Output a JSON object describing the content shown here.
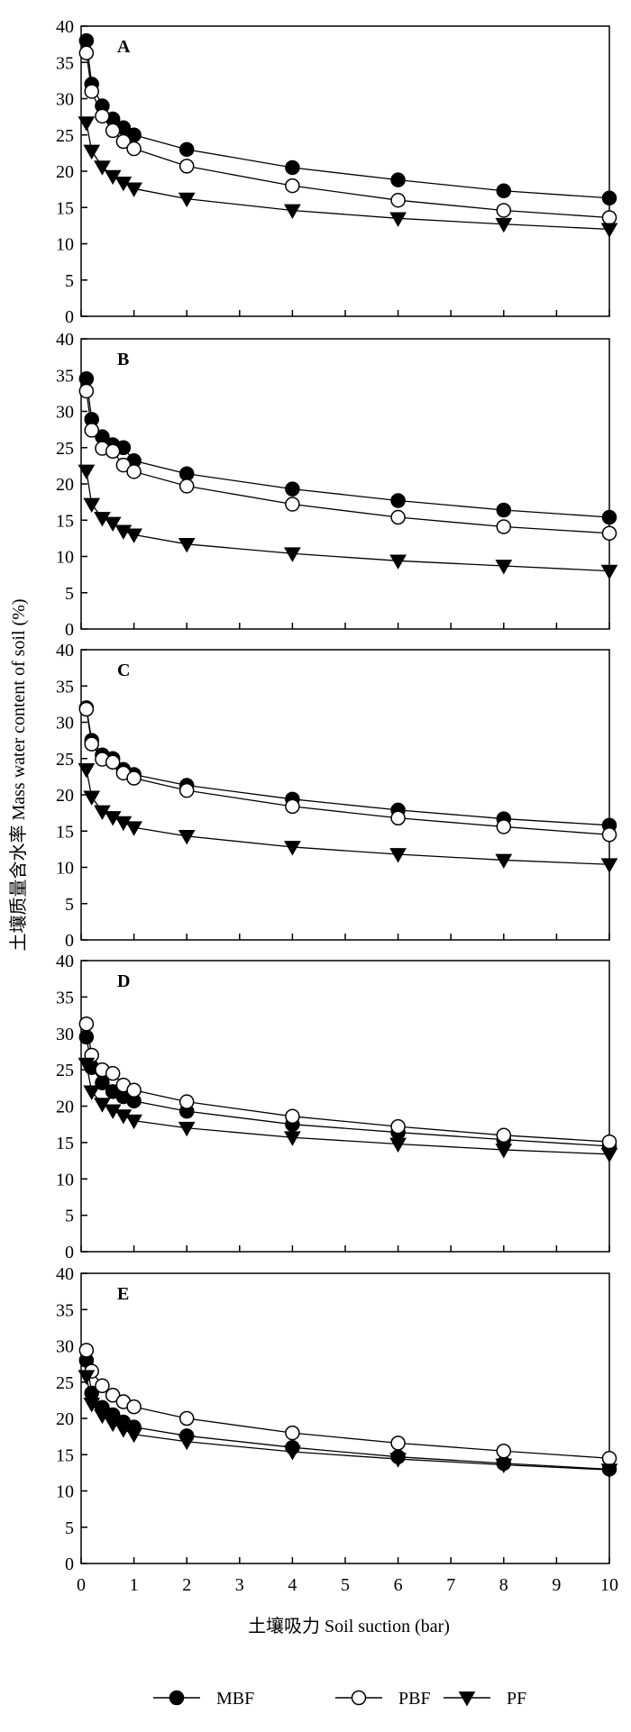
{
  "ylabel": "土壤质量含水率 Mass water content of soil (%)",
  "xlabel": "土壤吸力 Soil suction (bar)",
  "legend": [
    {
      "name": "MBF",
      "marker": "filled-circle"
    },
    {
      "name": "PBF",
      "marker": "open-circle"
    },
    {
      "name": "PF",
      "marker": "filled-triangle-down"
    }
  ],
  "colors": {
    "line": "#000000",
    "open_fill": "#ffffff",
    "filled": "#000000"
  },
  "chart_data": [
    {
      "type": "line",
      "panel": "A",
      "x": [
        0.1,
        0.2,
        0.4,
        0.6,
        0.8,
        1,
        2,
        4,
        6,
        8,
        10
      ],
      "xlim": [
        0,
        10
      ],
      "ylim": [
        0,
        40
      ],
      "xticks": [
        0,
        1,
        2,
        3,
        4,
        5,
        6,
        7,
        8,
        9,
        10
      ],
      "yticks": [
        0,
        5,
        10,
        15,
        20,
        25,
        30,
        35,
        40
      ],
      "series": [
        {
          "name": "MBF",
          "values": [
            38.0,
            32.0,
            29.0,
            27.2,
            26.0,
            25.0,
            23.0,
            20.5,
            18.8,
            17.3,
            16.3
          ]
        },
        {
          "name": "PBF",
          "values": [
            36.3,
            31.0,
            27.6,
            25.6,
            24.1,
            23.1,
            20.7,
            18.0,
            16.0,
            14.6,
            13.6
          ]
        },
        {
          "name": "PF",
          "values": [
            26.7,
            22.8,
            20.6,
            19.3,
            18.4,
            17.6,
            16.2,
            14.6,
            13.5,
            12.7,
            12.0
          ]
        }
      ]
    },
    {
      "type": "line",
      "panel": "B",
      "x": [
        0.1,
        0.2,
        0.4,
        0.6,
        0.8,
        1,
        2,
        4,
        6,
        8,
        10
      ],
      "xlim": [
        0,
        10
      ],
      "ylim": [
        0,
        40
      ],
      "xticks": [
        0,
        1,
        2,
        3,
        4,
        5,
        6,
        7,
        8,
        9,
        10
      ],
      "yticks": [
        0,
        5,
        10,
        15,
        20,
        25,
        30,
        35,
        40
      ],
      "series": [
        {
          "name": "MBF",
          "values": [
            34.5,
            28.9,
            26.5,
            25.4,
            25.0,
            23.2,
            21.4,
            19.3,
            17.7,
            16.4,
            15.4
          ]
        },
        {
          "name": "PBF",
          "values": [
            32.8,
            27.4,
            24.9,
            24.5,
            22.6,
            21.7,
            19.7,
            17.2,
            15.4,
            14.1,
            13.2
          ]
        },
        {
          "name": "PF",
          "values": [
            21.8,
            17.2,
            15.3,
            14.6,
            13.5,
            13.0,
            11.7,
            10.4,
            9.4,
            8.7,
            8.0
          ]
        }
      ]
    },
    {
      "type": "line",
      "panel": "C",
      "x": [
        0.1,
        0.2,
        0.4,
        0.6,
        0.8,
        1,
        2,
        4,
        6,
        8,
        10
      ],
      "xlim": [
        0,
        10
      ],
      "ylim": [
        0,
        40
      ],
      "xticks": [
        0,
        1,
        2,
        3,
        4,
        5,
        6,
        7,
        8,
        9,
        10
      ],
      "yticks": [
        0,
        5,
        10,
        15,
        20,
        25,
        30,
        35,
        40
      ],
      "series": [
        {
          "name": "MBF",
          "values": [
            32.0,
            27.5,
            25.5,
            25.0,
            23.5,
            22.8,
            21.3,
            19.4,
            17.9,
            16.7,
            15.8
          ]
        },
        {
          "name": "PBF",
          "values": [
            31.8,
            27.0,
            24.9,
            24.5,
            23.0,
            22.3,
            20.6,
            18.4,
            16.8,
            15.6,
            14.5
          ]
        },
        {
          "name": "PF",
          "values": [
            23.5,
            19.7,
            17.7,
            16.9,
            16.2,
            15.5,
            14.3,
            12.8,
            11.8,
            11.0,
            10.4
          ]
        }
      ]
    },
    {
      "type": "line",
      "panel": "D",
      "x": [
        0.1,
        0.2,
        0.4,
        0.6,
        0.8,
        1,
        2,
        4,
        6,
        8,
        10
      ],
      "xlim": [
        0,
        10
      ],
      "ylim": [
        0,
        40
      ],
      "xticks": [
        0,
        1,
        2,
        3,
        4,
        5,
        6,
        7,
        8,
        9,
        10
      ],
      "yticks": [
        0,
        5,
        10,
        15,
        20,
        25,
        30,
        35,
        40
      ],
      "series": [
        {
          "name": "MBF",
          "values": [
            29.5,
            25.3,
            23.2,
            22.0,
            21.3,
            20.7,
            19.3,
            17.5,
            16.4,
            15.4,
            14.5
          ]
        },
        {
          "name": "PBF",
          "values": [
            31.3,
            27.0,
            25.0,
            24.5,
            22.9,
            22.2,
            20.6,
            18.6,
            17.2,
            16.0,
            15.1
          ]
        },
        {
          "name": "PF",
          "values": [
            25.8,
            22.0,
            20.3,
            19.4,
            18.7,
            18.0,
            17.0,
            15.7,
            14.8,
            14.0,
            13.4
          ]
        }
      ]
    },
    {
      "type": "line",
      "panel": "E",
      "x": [
        0.1,
        0.2,
        0.4,
        0.6,
        0.8,
        1,
        2,
        4,
        6,
        8,
        10
      ],
      "xlim": [
        0,
        10
      ],
      "ylim": [
        0,
        40
      ],
      "xticks": [
        0,
        1,
        2,
        3,
        4,
        5,
        6,
        7,
        8,
        9,
        10
      ],
      "yticks": [
        0,
        5,
        10,
        15,
        20,
        25,
        30,
        35,
        40
      ],
      "series": [
        {
          "name": "MBF",
          "values": [
            28.0,
            23.5,
            21.5,
            20.5,
            19.5,
            18.8,
            17.6,
            16.0,
            14.7,
            13.8,
            13.0
          ]
        },
        {
          "name": "PBF",
          "values": [
            29.4,
            26.5,
            24.5,
            23.2,
            22.3,
            21.6,
            20.0,
            18.0,
            16.6,
            15.5,
            14.5
          ]
        },
        {
          "name": "PF",
          "values": [
            25.8,
            22.0,
            20.4,
            19.3,
            18.5,
            17.8,
            16.8,
            15.4,
            14.4,
            13.6,
            12.9
          ]
        }
      ]
    }
  ]
}
